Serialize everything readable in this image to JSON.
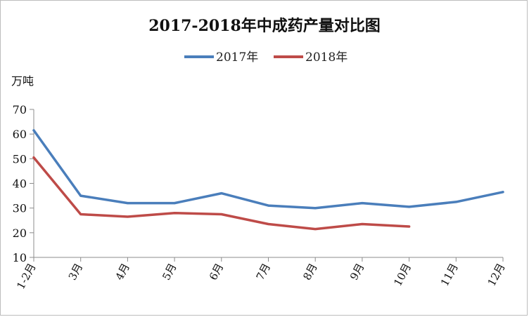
{
  "chart_data": {
    "type": "line",
    "title": "2017-2018年中成药产量对比图",
    "ylabel": "万吨",
    "xlabel": "",
    "categories": [
      "1-2月",
      "3月",
      "4月",
      "5月",
      "6月",
      "7月",
      "8月",
      "9月",
      "10月",
      "11月",
      "12月"
    ],
    "ylim": [
      10,
      70
    ],
    "yticks": [
      10,
      20,
      30,
      40,
      50,
      60,
      70
    ],
    "grid": false,
    "legend_position": "top-center",
    "series": [
      {
        "name": "2017年",
        "color": "#4a7ebb",
        "values": [
          61.5,
          35,
          32,
          32,
          36,
          31,
          30,
          32,
          30.5,
          32.5,
          36.5
        ]
      },
      {
        "name": "2018年",
        "color": "#be4b48",
        "values": [
          50.5,
          27.5,
          26.5,
          28,
          27.5,
          23.5,
          21.5,
          23.5,
          22.5,
          null,
          null
        ]
      }
    ]
  }
}
